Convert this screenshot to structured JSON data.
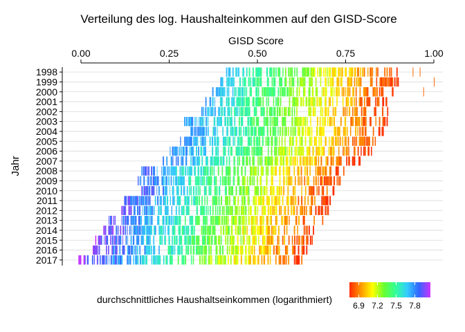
{
  "chart_data": {
    "type": "heatmap",
    "title": "Verteilung des log. Haushalteinkommen auf den GISD-Score",
    "xlabel": "GISD Score",
    "ylabel": "Jahr",
    "xaxis_position": "top",
    "xlim": [
      -0.05,
      1.02
    ],
    "xticks": [
      0.0,
      0.25,
      0.5,
      0.75,
      1.0
    ],
    "xtick_labels": [
      "0.00",
      "0.25",
      "0.50",
      "0.75",
      "1.00"
    ],
    "categories": [
      "1998",
      "1999",
      "2000",
      "2001",
      "2002",
      "2003",
      "2004",
      "2005",
      "2006",
      "2007",
      "2008",
      "2009",
      "2010",
      "2011",
      "2012",
      "2013",
      "2014",
      "2015",
      "2016",
      "2017"
    ],
    "gisd_range_per_year": [
      {
        "year": "1998",
        "min": 0.41,
        "max": 0.9
      },
      {
        "year": "1999",
        "min": 0.38,
        "max": 0.9
      },
      {
        "year": "2000",
        "min": 0.37,
        "max": 0.89
      },
      {
        "year": "2001",
        "min": 0.35,
        "max": 0.87
      },
      {
        "year": "2002",
        "min": 0.34,
        "max": 0.87
      },
      {
        "year": "2003",
        "min": 0.29,
        "max": 0.87
      },
      {
        "year": "2004",
        "min": 0.31,
        "max": 0.86
      },
      {
        "year": "2005",
        "min": 0.28,
        "max": 0.85
      },
      {
        "year": "2006",
        "min": 0.25,
        "max": 0.84
      },
      {
        "year": "2007",
        "min": 0.23,
        "max": 0.79
      },
      {
        "year": "2008",
        "min": 0.17,
        "max": 0.75
      },
      {
        "year": "2009",
        "min": 0.16,
        "max": 0.74
      },
      {
        "year": "2010",
        "min": 0.17,
        "max": 0.72
      },
      {
        "year": "2011",
        "min": 0.12,
        "max": 0.71
      },
      {
        "year": "2012",
        "min": 0.11,
        "max": 0.7
      },
      {
        "year": "2013",
        "min": 0.07,
        "max": 0.69
      },
      {
        "year": "2014",
        "min": 0.06,
        "max": 0.66
      },
      {
        "year": "2015",
        "min": 0.04,
        "max": 0.66
      },
      {
        "year": "2016",
        "min": 0.03,
        "max": 0.65
      },
      {
        "year": "2017",
        "min": -0.01,
        "max": 0.63
      }
    ],
    "outliers": [
      {
        "year": "1998",
        "x": 0.94
      },
      {
        "year": "1998",
        "x": 0.96
      },
      {
        "year": "1999",
        "x": 1.0
      },
      {
        "year": "2000",
        "x": 0.97
      }
    ],
    "legend": {
      "title": "durchschnittliches Haushaltseinkommen (logarithmiert)",
      "position": "bottom",
      "range": [
        6.75,
        8.05
      ],
      "breaks": [
        6.9,
        7.2,
        7.5,
        7.8
      ],
      "break_labels": [
        "6.9",
        "7.2",
        "7.5",
        "7.8"
      ],
      "colors": [
        "#ff2a00",
        "#ff9900",
        "#ffff00",
        "#66ff33",
        "#33ff99",
        "#33ccff",
        "#3366ff",
        "#cc33ff"
      ]
    },
    "grid": true
  }
}
